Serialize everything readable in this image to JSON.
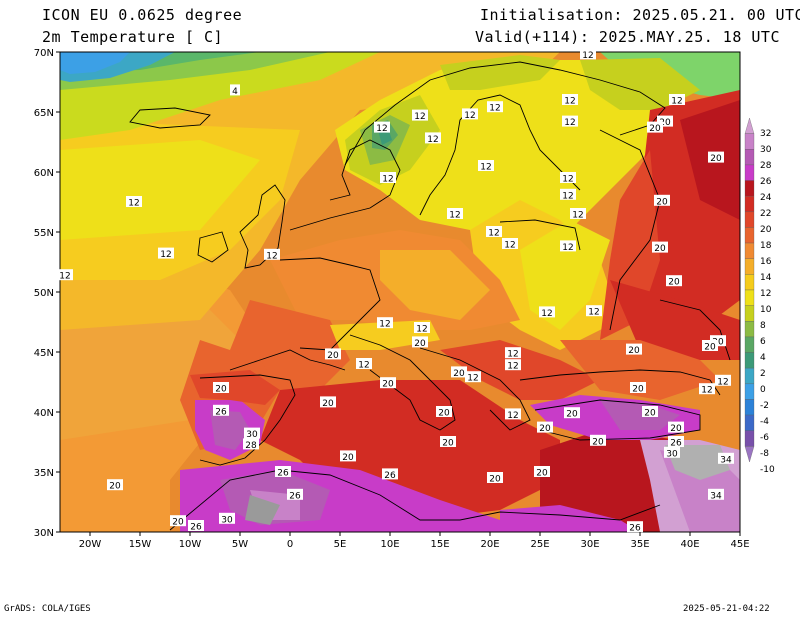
{
  "header": {
    "model": "ICON EU 0.0625 degree",
    "variable": "2m Temperature [ C]",
    "init": "Initialisation: 2025.05.21. 00 UTC",
    "valid": "Valid(+114): 2025.MAY.25. 18 UTC"
  },
  "footer": {
    "credit": "GrADS: COLA/IGES",
    "timestamp": "2025-05-21-04:22"
  },
  "map": {
    "lon_range": [
      -23,
      45
    ],
    "lat_range": [
      30,
      70
    ],
    "lon_ticks": [
      {
        "value": -20,
        "label": "20W"
      },
      {
        "value": -15,
        "label": "15W"
      },
      {
        "value": -10,
        "label": "10W"
      },
      {
        "value": -5,
        "label": "5W"
      },
      {
        "value": 0,
        "label": "0"
      },
      {
        "value": 5,
        "label": "5E"
      },
      {
        "value": 10,
        "label": "10E"
      },
      {
        "value": 15,
        "label": "15E"
      },
      {
        "value": 20,
        "label": "20E"
      },
      {
        "value": 25,
        "label": "25E"
      },
      {
        "value": 30,
        "label": "30E"
      },
      {
        "value": 35,
        "label": "35E"
      },
      {
        "value": 40,
        "label": "40E"
      },
      {
        "value": 45,
        "label": "45E"
      }
    ],
    "lat_ticks": [
      {
        "value": 70,
        "label": "70N"
      },
      {
        "value": 65,
        "label": "65N"
      },
      {
        "value": 60,
        "label": "60N"
      },
      {
        "value": 55,
        "label": "55N"
      },
      {
        "value": 50,
        "label": "50N"
      },
      {
        "value": 45,
        "label": "45N"
      },
      {
        "value": 40,
        "label": "40N"
      },
      {
        "value": 35,
        "label": "35N"
      },
      {
        "value": 30,
        "label": "30N"
      }
    ],
    "contour_labels": [
      {
        "lon": -5.5,
        "lat": 66.8,
        "text": "4"
      },
      {
        "lon": 29.8,
        "lat": 69.8,
        "text": "12"
      },
      {
        "lon": 20.5,
        "lat": 65.4,
        "text": "12"
      },
      {
        "lon": 18.0,
        "lat": 64.8,
        "text": "12"
      },
      {
        "lon": 13.0,
        "lat": 64.7,
        "text": "12"
      },
      {
        "lon": 28.0,
        "lat": 66.0,
        "text": "12"
      },
      {
        "lon": 38.7,
        "lat": 66.0,
        "text": "12"
      },
      {
        "lon": 37.5,
        "lat": 64.2,
        "text": "20"
      },
      {
        "lon": 28.0,
        "lat": 64.2,
        "text": "12"
      },
      {
        "lon": 36.5,
        "lat": 63.7,
        "text": "20"
      },
      {
        "lon": 9.2,
        "lat": 63.7,
        "text": "12"
      },
      {
        "lon": 14.3,
        "lat": 62.8,
        "text": "12"
      },
      {
        "lon": 42.6,
        "lat": 61.2,
        "text": "20"
      },
      {
        "lon": 19.6,
        "lat": 60.5,
        "text": "12"
      },
      {
        "lon": 9.8,
        "lat": 59.5,
        "text": "12"
      },
      {
        "lon": 27.8,
        "lat": 59.5,
        "text": "12"
      },
      {
        "lon": 37.2,
        "lat": 57.6,
        "text": "20"
      },
      {
        "lon": -15.6,
        "lat": 57.5,
        "text": "12"
      },
      {
        "lon": 16.5,
        "lat": 56.5,
        "text": "12"
      },
      {
        "lon": 28.8,
        "lat": 56.5,
        "text": "12"
      },
      {
        "lon": 27.8,
        "lat": 58.1,
        "text": "12"
      },
      {
        "lon": 20.4,
        "lat": 55.0,
        "text": "12"
      },
      {
        "lon": 22.0,
        "lat": 54.0,
        "text": "12"
      },
      {
        "lon": 27.8,
        "lat": 53.8,
        "text": "12"
      },
      {
        "lon": 37.0,
        "lat": 53.7,
        "text": "20"
      },
      {
        "lon": -12.4,
        "lat": 53.2,
        "text": "12"
      },
      {
        "lon": -1.8,
        "lat": 53.1,
        "text": "12"
      },
      {
        "lon": -22.5,
        "lat": 51.4,
        "text": "12"
      },
      {
        "lon": 38.4,
        "lat": 50.9,
        "text": "20"
      },
      {
        "lon": 25.7,
        "lat": 48.3,
        "text": "12"
      },
      {
        "lon": 30.4,
        "lat": 48.4,
        "text": "12"
      },
      {
        "lon": 9.5,
        "lat": 47.4,
        "text": "12"
      },
      {
        "lon": 13.2,
        "lat": 47.0,
        "text": "12"
      },
      {
        "lon": 13.0,
        "lat": 45.8,
        "text": "20"
      },
      {
        "lon": 42.8,
        "lat": 45.9,
        "text": "20"
      },
      {
        "lon": 34.4,
        "lat": 45.2,
        "text": "20"
      },
      {
        "lon": 42.0,
        "lat": 45.5,
        "text": "20"
      },
      {
        "lon": 4.3,
        "lat": 44.8,
        "text": "20"
      },
      {
        "lon": 22.3,
        "lat": 44.9,
        "text": "12"
      },
      {
        "lon": 7.4,
        "lat": 44.0,
        "text": "12"
      },
      {
        "lon": 22.3,
        "lat": 43.9,
        "text": "12"
      },
      {
        "lon": 16.9,
        "lat": 43.3,
        "text": "20"
      },
      {
        "lon": 18.3,
        "lat": 42.9,
        "text": "12"
      },
      {
        "lon": 43.3,
        "lat": 42.6,
        "text": "12"
      },
      {
        "lon": 9.8,
        "lat": 42.4,
        "text": "20"
      },
      {
        "lon": -6.9,
        "lat": 42.0,
        "text": "20"
      },
      {
        "lon": 41.7,
        "lat": 41.9,
        "text": "12"
      },
      {
        "lon": 34.8,
        "lat": 42.0,
        "text": "20"
      },
      {
        "lon": 3.8,
        "lat": 40.8,
        "text": "20"
      },
      {
        "lon": -6.9,
        "lat": 40.1,
        "text": "26"
      },
      {
        "lon": 15.4,
        "lat": 40.0,
        "text": "20"
      },
      {
        "lon": 22.3,
        "lat": 39.8,
        "text": "12"
      },
      {
        "lon": 28.2,
        "lat": 39.9,
        "text": "20"
      },
      {
        "lon": 36.0,
        "lat": 40.0,
        "text": "20"
      },
      {
        "lon": 25.5,
        "lat": 38.7,
        "text": "20"
      },
      {
        "lon": 38.6,
        "lat": 38.7,
        "text": "20"
      },
      {
        "lon": -3.8,
        "lat": 38.2,
        "text": "30"
      },
      {
        "lon": 15.8,
        "lat": 37.5,
        "text": "20"
      },
      {
        "lon": 30.8,
        "lat": 37.6,
        "text": "20"
      },
      {
        "lon": 38.6,
        "lat": 37.5,
        "text": "26"
      },
      {
        "lon": -3.9,
        "lat": 37.3,
        "text": "28"
      },
      {
        "lon": 38.2,
        "lat": 36.6,
        "text": "30"
      },
      {
        "lon": 43.6,
        "lat": 36.1,
        "text": "34"
      },
      {
        "lon": 5.8,
        "lat": 36.3,
        "text": "20"
      },
      {
        "lon": -0.7,
        "lat": 35.0,
        "text": "26"
      },
      {
        "lon": 10.0,
        "lat": 34.8,
        "text": "26"
      },
      {
        "lon": 20.5,
        "lat": 34.5,
        "text": "20"
      },
      {
        "lon": 25.2,
        "lat": 35.0,
        "text": "20"
      },
      {
        "lon": -17.5,
        "lat": 33.9,
        "text": "20"
      },
      {
        "lon": 0.5,
        "lat": 33.1,
        "text": "26"
      },
      {
        "lon": 42.6,
        "lat": 33.1,
        "text": "34"
      },
      {
        "lon": -6.3,
        "lat": 31.1,
        "text": "30"
      },
      {
        "lon": -11.2,
        "lat": 30.9,
        "text": "20"
      },
      {
        "lon": -9.4,
        "lat": 30.5,
        "text": "26"
      },
      {
        "lon": 34.5,
        "lat": 30.4,
        "text": "26"
      }
    ]
  },
  "colorbar": {
    "levels": [
      "32",
      "30",
      "28",
      "26",
      "24",
      "22",
      "20",
      "18",
      "16",
      "14",
      "12",
      "10",
      "8",
      "6",
      "4",
      "2",
      "0",
      "-2",
      "-4",
      "-6",
      "-8",
      "-10"
    ],
    "colors": [
      "#d2a0d2",
      "#c882c8",
      "#b45ab4",
      "#c83cc8",
      "#b8161e",
      "#d22c23",
      "#e0472a",
      "#e8642e",
      "#f08a32",
      "#f4ae2a",
      "#f5cc1c",
      "#eee019",
      "#c6d01e",
      "#8cbb44",
      "#5aa764",
      "#3c9a78",
      "#3ca7c5",
      "#3ca0e6",
      "#2c82d8",
      "#3c69c8",
      "#7850aa",
      "#9a74c2"
    ]
  }
}
